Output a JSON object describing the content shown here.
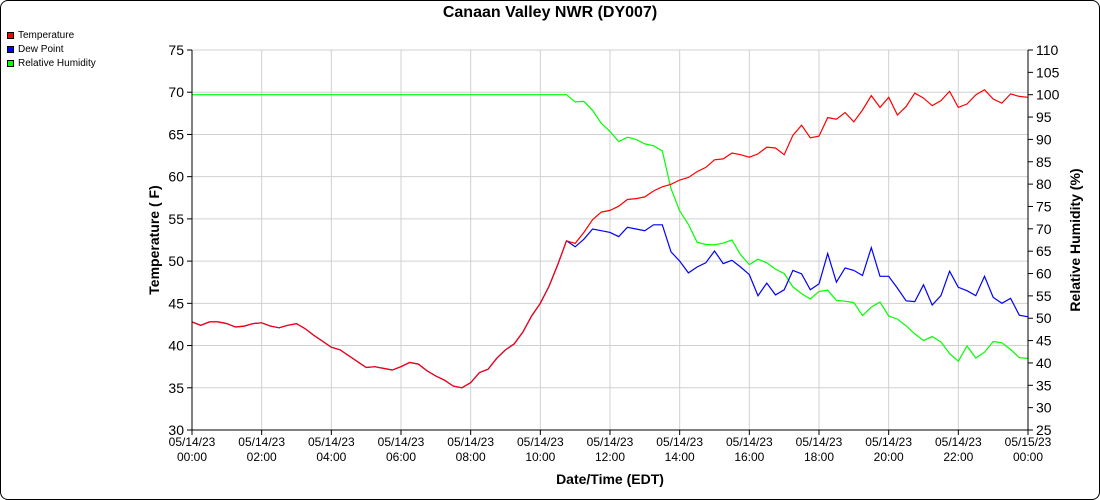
{
  "chart_data": {
    "type": "line",
    "title": "Canaan Valley NWR (DY007)",
    "xlabel": "Date/Time (EDT)",
    "ylabel": "Temperature ( F)",
    "y2label": "Relative Humidity (%)",
    "ylim": [
      30,
      75
    ],
    "y2lim": [
      25,
      110
    ],
    "xlim": [
      0,
      24
    ],
    "grid": true,
    "legend_position": "top-left",
    "yticks": [
      "30",
      "35",
      "40",
      "45",
      "50",
      "55",
      "60",
      "65",
      "70",
      "75"
    ],
    "y2ticks": [
      "25",
      "30",
      "35",
      "40",
      "45",
      "50",
      "55",
      "60",
      "65",
      "70",
      "75",
      "80",
      "85",
      "90",
      "95",
      "100",
      "105",
      "110"
    ],
    "xticks": [
      {
        "date": "05/14/23",
        "time": "00:00"
      },
      {
        "date": "05/14/23",
        "time": "02:00"
      },
      {
        "date": "05/14/23",
        "time": "04:00"
      },
      {
        "date": "05/14/23",
        "time": "06:00"
      },
      {
        "date": "05/14/23",
        "time": "08:00"
      },
      {
        "date": "05/14/23",
        "time": "10:00"
      },
      {
        "date": "05/14/23",
        "time": "12:00"
      },
      {
        "date": "05/14/23",
        "time": "14:00"
      },
      {
        "date": "05/14/23",
        "time": "16:00"
      },
      {
        "date": "05/14/23",
        "time": "18:00"
      },
      {
        "date": "05/14/23",
        "time": "20:00"
      },
      {
        "date": "05/14/23",
        "time": "22:00"
      },
      {
        "date": "05/15/23",
        "time": "00:00"
      }
    ],
    "series": [
      {
        "name": "Temperature",
        "color": "#ff0000",
        "axis": "left",
        "points": [
          [
            0,
            42.8
          ],
          [
            0.25,
            42.4
          ],
          [
            0.5,
            42.8
          ],
          [
            0.75,
            42.8
          ],
          [
            1,
            42.6
          ],
          [
            1.25,
            42.2
          ],
          [
            1.5,
            42.3
          ],
          [
            1.75,
            42.6
          ],
          [
            2,
            42.7
          ],
          [
            2.25,
            42.3
          ],
          [
            2.5,
            42.1
          ],
          [
            2.75,
            42.4
          ],
          [
            3,
            42.6
          ],
          [
            3.25,
            42.0
          ],
          [
            3.5,
            41.2
          ],
          [
            3.75,
            40.5
          ],
          [
            4,
            39.8
          ],
          [
            4.25,
            39.5
          ],
          [
            4.5,
            38.8
          ],
          [
            4.75,
            38.1
          ],
          [
            5,
            37.4
          ],
          [
            5.25,
            37.5
          ],
          [
            5.5,
            37.3
          ],
          [
            5.75,
            37.1
          ],
          [
            6,
            37.5
          ],
          [
            6.25,
            38.0
          ],
          [
            6.5,
            37.8
          ],
          [
            6.75,
            37.0
          ],
          [
            7,
            36.4
          ],
          [
            7.25,
            35.9
          ],
          [
            7.5,
            35.2
          ],
          [
            7.75,
            35.0
          ],
          [
            8,
            35.6
          ],
          [
            8.25,
            36.8
          ],
          [
            8.5,
            37.2
          ],
          [
            8.75,
            38.5
          ],
          [
            9,
            39.5
          ],
          [
            9.25,
            40.2
          ],
          [
            9.5,
            41.6
          ],
          [
            9.75,
            43.5
          ],
          [
            10,
            45.0
          ],
          [
            10.25,
            47.0
          ],
          [
            10.5,
            49.6
          ],
          [
            10.75,
            52.4
          ],
          [
            11,
            52.1
          ],
          [
            11.25,
            53.4
          ],
          [
            11.5,
            54.9
          ],
          [
            11.75,
            55.8
          ],
          [
            12,
            56.0
          ],
          [
            12.25,
            56.5
          ],
          [
            12.5,
            57.3
          ],
          [
            12.75,
            57.4
          ],
          [
            13,
            57.6
          ],
          [
            13.25,
            58.3
          ],
          [
            13.5,
            58.8
          ],
          [
            13.75,
            59.1
          ],
          [
            14,
            59.6
          ],
          [
            14.25,
            59.9
          ],
          [
            14.5,
            60.6
          ],
          [
            14.75,
            61.1
          ],
          [
            15,
            62.0
          ],
          [
            15.25,
            62.1
          ],
          [
            15.5,
            62.8
          ],
          [
            15.75,
            62.6
          ],
          [
            16,
            62.3
          ],
          [
            16.25,
            62.7
          ],
          [
            16.5,
            63.5
          ],
          [
            16.75,
            63.4
          ],
          [
            17,
            62.6
          ],
          [
            17.25,
            64.9
          ],
          [
            17.5,
            66.1
          ],
          [
            17.75,
            64.6
          ],
          [
            18,
            64.8
          ],
          [
            18.25,
            67.0
          ],
          [
            18.5,
            66.8
          ],
          [
            18.75,
            67.6
          ],
          [
            19,
            66.5
          ],
          [
            19.25,
            67.9
          ],
          [
            19.5,
            69.6
          ],
          [
            19.75,
            68.2
          ],
          [
            20,
            69.4
          ],
          [
            20.25,
            67.3
          ],
          [
            20.5,
            68.3
          ],
          [
            20.75,
            69.9
          ],
          [
            21,
            69.3
          ],
          [
            21.25,
            68.4
          ],
          [
            21.5,
            69.0
          ],
          [
            21.75,
            70.1
          ],
          [
            22,
            68.2
          ],
          [
            22.25,
            68.6
          ],
          [
            22.5,
            69.7
          ],
          [
            22.75,
            70.3
          ],
          [
            23,
            69.2
          ],
          [
            23.25,
            68.7
          ],
          [
            23.5,
            69.8
          ],
          [
            23.75,
            69.5
          ],
          [
            24,
            69.4
          ]
        ]
      },
      {
        "name": "Dew Point",
        "color": "#0000ff",
        "axis": "left",
        "points": [
          [
            0,
            42.8
          ],
          [
            0.25,
            42.4
          ],
          [
            0.5,
            42.8
          ],
          [
            0.75,
            42.8
          ],
          [
            1,
            42.6
          ],
          [
            1.25,
            42.2
          ],
          [
            1.5,
            42.3
          ],
          [
            1.75,
            42.6
          ],
          [
            2,
            42.7
          ],
          [
            2.25,
            42.3
          ],
          [
            2.5,
            42.1
          ],
          [
            2.75,
            42.4
          ],
          [
            3,
            42.6
          ],
          [
            3.25,
            42.0
          ],
          [
            3.5,
            41.2
          ],
          [
            3.75,
            40.5
          ],
          [
            4,
            39.8
          ],
          [
            4.25,
            39.5
          ],
          [
            4.5,
            38.8
          ],
          [
            4.75,
            38.1
          ],
          [
            5,
            37.4
          ],
          [
            5.25,
            37.5
          ],
          [
            5.5,
            37.3
          ],
          [
            5.75,
            37.1
          ],
          [
            6,
            37.5
          ],
          [
            6.25,
            38.0
          ],
          [
            6.5,
            37.8
          ],
          [
            6.75,
            37.0
          ],
          [
            7,
            36.4
          ],
          [
            7.25,
            35.9
          ],
          [
            7.5,
            35.2
          ],
          [
            7.75,
            35.0
          ],
          [
            8,
            35.6
          ],
          [
            8.25,
            36.8
          ],
          [
            8.5,
            37.2
          ],
          [
            8.75,
            38.5
          ],
          [
            9,
            39.5
          ],
          [
            9.25,
            40.2
          ],
          [
            9.5,
            41.6
          ],
          [
            9.75,
            43.5
          ],
          [
            10,
            45.0
          ],
          [
            10.25,
            47.0
          ],
          [
            10.5,
            49.6
          ],
          [
            10.75,
            52.4
          ],
          [
            11,
            51.7
          ],
          [
            11.25,
            52.6
          ],
          [
            11.5,
            53.8
          ],
          [
            11.75,
            53.6
          ],
          [
            12,
            53.4
          ],
          [
            12.25,
            52.9
          ],
          [
            12.5,
            54.0
          ],
          [
            12.75,
            53.8
          ],
          [
            13,
            53.6
          ],
          [
            13.25,
            54.3
          ],
          [
            13.5,
            54.3
          ],
          [
            13.75,
            51.1
          ],
          [
            14,
            50.0
          ],
          [
            14.25,
            48.6
          ],
          [
            14.5,
            49.3
          ],
          [
            14.75,
            49.8
          ],
          [
            15,
            51.2
          ],
          [
            15.25,
            49.7
          ],
          [
            15.5,
            50.1
          ],
          [
            15.75,
            49.3
          ],
          [
            16,
            48.4
          ],
          [
            16.25,
            45.9
          ],
          [
            16.5,
            47.4
          ],
          [
            16.75,
            46.0
          ],
          [
            17,
            46.6
          ],
          [
            17.25,
            48.9
          ],
          [
            17.5,
            48.5
          ],
          [
            17.75,
            46.6
          ],
          [
            18,
            47.3
          ],
          [
            18.25,
            50.9
          ],
          [
            18.5,
            47.5
          ],
          [
            18.75,
            49.2
          ],
          [
            19,
            48.9
          ],
          [
            19.25,
            48.3
          ],
          [
            19.5,
            51.6
          ],
          [
            19.75,
            48.2
          ],
          [
            20,
            48.2
          ],
          [
            20.25,
            46.8
          ],
          [
            20.5,
            45.3
          ],
          [
            20.75,
            45.2
          ],
          [
            21,
            47.2
          ],
          [
            21.25,
            44.8
          ],
          [
            21.5,
            45.9
          ],
          [
            21.75,
            48.8
          ],
          [
            22,
            46.9
          ],
          [
            22.25,
            46.5
          ],
          [
            22.5,
            45.9
          ],
          [
            22.75,
            48.2
          ],
          [
            23,
            45.7
          ],
          [
            23.25,
            45.0
          ],
          [
            23.5,
            45.6
          ],
          [
            23.75,
            43.6
          ],
          [
            24,
            43.4
          ]
        ]
      },
      {
        "name": "Relative Humidity",
        "color": "#00ff00",
        "axis": "right",
        "points": [
          [
            0,
            100
          ],
          [
            1,
            100
          ],
          [
            2,
            100
          ],
          [
            3,
            100
          ],
          [
            4,
            100
          ],
          [
            5,
            100
          ],
          [
            6,
            100
          ],
          [
            7,
            100
          ],
          [
            8,
            100
          ],
          [
            9,
            100
          ],
          [
            10,
            100
          ],
          [
            10.75,
            100
          ],
          [
            11,
            98.4
          ],
          [
            11.25,
            98.5
          ],
          [
            11.5,
            96.5
          ],
          [
            11.75,
            93.6
          ],
          [
            12,
            91.8
          ],
          [
            12.25,
            89.5
          ],
          [
            12.5,
            90.5
          ],
          [
            12.75,
            90.0
          ],
          [
            13,
            89.0
          ],
          [
            13.25,
            88.6
          ],
          [
            13.5,
            87.4
          ],
          [
            13.75,
            79.0
          ],
          [
            14,
            74.0
          ],
          [
            14.25,
            71.0
          ],
          [
            14.5,
            67.0
          ],
          [
            14.75,
            66.5
          ],
          [
            15,
            66.4
          ],
          [
            15.25,
            66.8
          ],
          [
            15.5,
            67.5
          ],
          [
            15.75,
            64.2
          ],
          [
            16,
            62.0
          ],
          [
            16.25,
            63.2
          ],
          [
            16.5,
            62.4
          ],
          [
            16.75,
            61.0
          ],
          [
            17,
            60.0
          ],
          [
            17.25,
            57.0
          ],
          [
            17.5,
            55.5
          ],
          [
            17.75,
            54.3
          ],
          [
            18,
            56.0
          ],
          [
            18.25,
            56.3
          ],
          [
            18.5,
            54.0
          ],
          [
            18.75,
            53.8
          ],
          [
            19,
            53.5
          ],
          [
            19.25,
            50.6
          ],
          [
            19.5,
            52.5
          ],
          [
            19.75,
            53.6
          ],
          [
            20,
            50.5
          ],
          [
            20.25,
            49.8
          ],
          [
            20.5,
            48.3
          ],
          [
            20.75,
            46.5
          ],
          [
            21,
            45.0
          ],
          [
            21.25,
            45.9
          ],
          [
            21.5,
            44.7
          ],
          [
            21.75,
            42.1
          ],
          [
            22,
            40.4
          ],
          [
            22.25,
            43.8
          ],
          [
            22.5,
            41.1
          ],
          [
            22.75,
            42.4
          ],
          [
            23,
            44.8
          ],
          [
            23.25,
            44.5
          ],
          [
            23.5,
            43.0
          ],
          [
            23.75,
            41.2
          ],
          [
            24,
            41.0
          ]
        ]
      }
    ]
  }
}
